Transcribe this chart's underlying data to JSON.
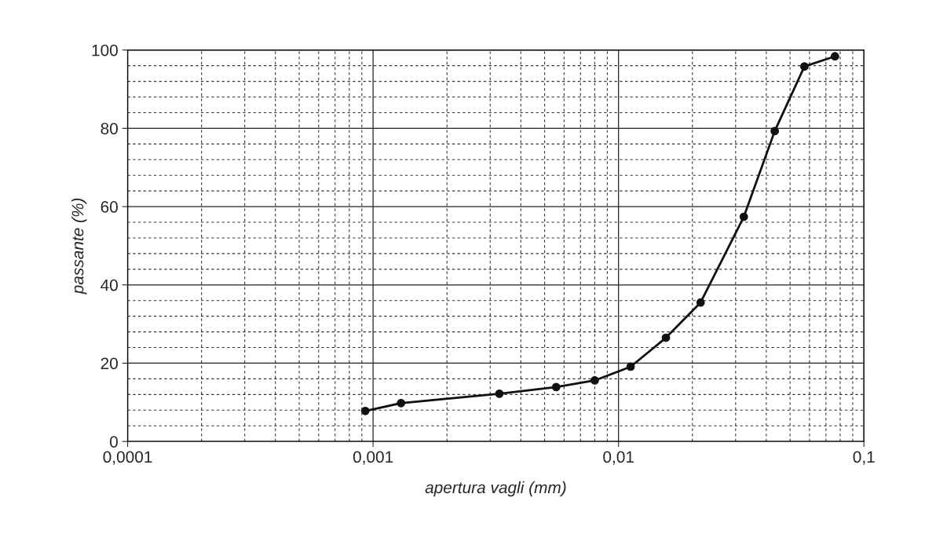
{
  "chart_data": {
    "type": "line",
    "xlabel": "apertura vagli (mm)",
    "ylabel": "passante (%)",
    "x": [
      0.00093,
      0.0013,
      0.00327,
      0.00557,
      0.008,
      0.0112,
      0.0156,
      0.0216,
      0.0324,
      0.0433,
      0.0572,
      0.0762
    ],
    "series": [
      {
        "color": "#111111",
        "values": [
          7.8,
          9.8,
          12.2,
          13.9,
          15.6,
          19.1,
          26.5,
          35.5,
          57.4,
          79.3,
          95.8,
          98.4
        ]
      }
    ],
    "log": "x",
    "xlim": [
      0.0001,
      0.1
    ],
    "xticks": [
      {
        "value": 0.0001,
        "label": "0,0001"
      },
      {
        "value": 0.001,
        "label": "0,001"
      },
      {
        "value": 0.01,
        "label": "0,01"
      },
      {
        "value": 0.1,
        "label": "0,1"
      }
    ],
    "ylim": [
      0,
      100
    ],
    "yticks": [
      0,
      20,
      40,
      60,
      80,
      100
    ],
    "grid": true,
    "marker": "circle",
    "line_style": "solid"
  }
}
